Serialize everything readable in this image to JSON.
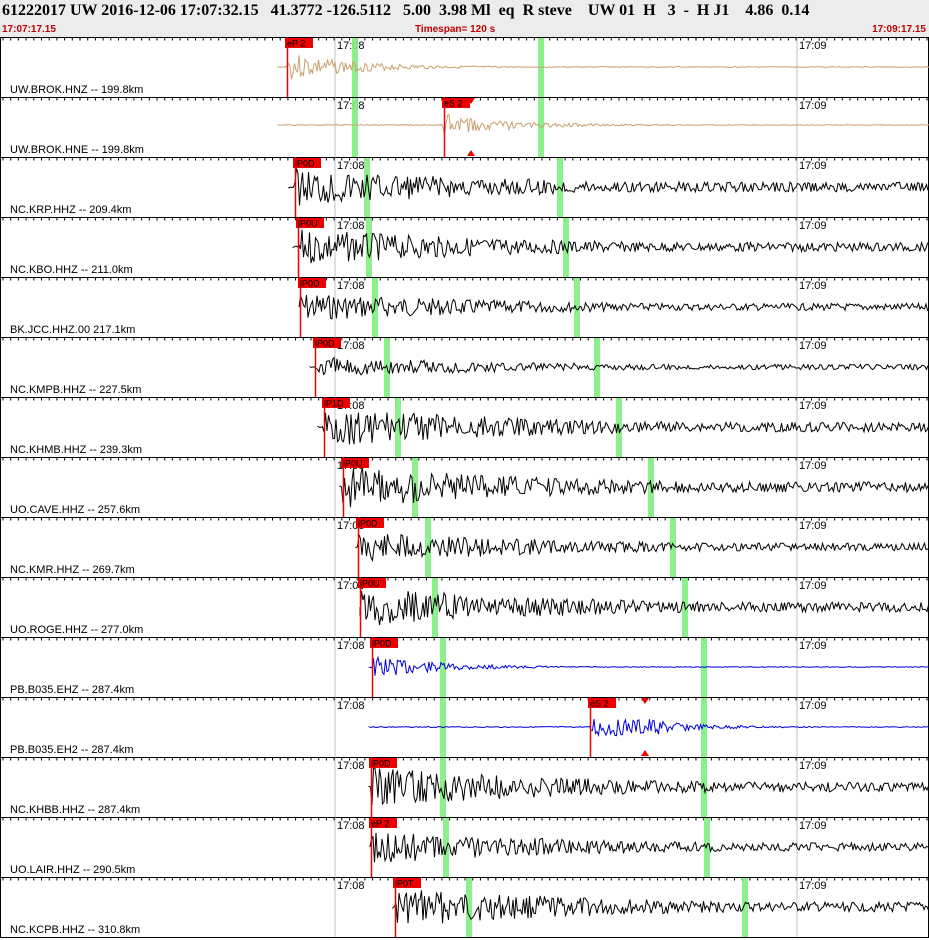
{
  "header": {
    "title": "61222017 UW 2016-12-06 17:07:32.15   41.3772 -126.5112   5.00  3.98 Ml  eq  R steve    UW 01  H   3  -  H J1    4.86  0.14",
    "start_time": "17:07:17.15",
    "timespan": "Timespan= 120 s",
    "end_time": "17:09:17.15"
  },
  "minute_labels": [
    "17:08",
    "17:09"
  ],
  "colors": {
    "brown": "#c8a070",
    "black": "#000000",
    "blue": "#0000dd",
    "pick": "#ee0000",
    "marker": "#80ee80"
  },
  "traces": [
    {
      "station": "UW.BROK.HNZ -- 199.8km",
      "pick": "eP 2",
      "pick_x": 287,
      "trace_x": 278,
      "color": "brown",
      "amp": 0.55,
      "green": 355,
      "green2": 541
    },
    {
      "station": "UW.BROK.HNE -- 199.8km",
      "pick": "eS 2",
      "pick_x": 444,
      "trace_x": 278,
      "color": "brown",
      "amp": 0.45,
      "green": 355,
      "green2": 541,
      "tri": 471
    },
    {
      "station": "NC.KRP.HHZ -- 209.4km",
      "pick": "iP0D",
      "pick_x": 295,
      "trace_x": 289,
      "color": "black",
      "amp": 0.75,
      "green": 367,
      "green2": 560
    },
    {
      "station": "NC.KBO.HHZ -- 211.0km",
      "pick": "iP0U",
      "pick_x": 298,
      "trace_x": 293,
      "color": "black",
      "amp": 0.7,
      "green": 369,
      "green2": 566
    },
    {
      "station": "BK.JCC.HHZ.00 217.1km",
      "pick": "iP0D",
      "pick_x": 300,
      "trace_x": 299,
      "color": "black",
      "amp": 0.55,
      "green": 375,
      "green2": 577
    },
    {
      "station": "NC.KMPB.HHZ -- 227.5km",
      "pick": "iP0D",
      "pick_x": 315,
      "trace_x": 310,
      "color": "black",
      "amp": 0.4,
      "green": 387,
      "green2": 597
    },
    {
      "station": "NC.KHMB.HHZ -- 239.3km",
      "pick": "iP1D",
      "pick_x": 324,
      "trace_x": 318,
      "color": "black",
      "amp": 0.75,
      "green": 398,
      "green2": 619
    },
    {
      "station": "UO.CAVE.HHZ -- 257.6km",
      "pick": "iP0U",
      "pick_x": 343,
      "trace_x": 340,
      "color": "black",
      "amp": 0.8,
      "green": 415,
      "green2": 651
    },
    {
      "station": "NC.KMR.HHZ -- 269.7km",
      "pick": "iP0D",
      "pick_x": 358,
      "trace_x": 356,
      "color": "black",
      "amp": 0.6,
      "green": 428,
      "green2": 673
    },
    {
      "station": "UO.ROGE.HHZ -- 277.0km",
      "pick": "iP0U",
      "pick_x": 360,
      "trace_x": 360,
      "color": "black",
      "amp": 0.75,
      "green": 435,
      "green2": 685
    },
    {
      "station": "PB.B035.EHZ -- 287.4km",
      "pick": "iP0D",
      "pick_x": 372,
      "trace_x": 369,
      "color": "blue",
      "amp": 0.45,
      "green": 443,
      "green2": 704
    },
    {
      "station": "PB.B035.EH2 -- 287.4km",
      "pick": "eS 2",
      "pick_x": 590,
      "trace_x": 369,
      "color": "blue",
      "amp": 0.5,
      "green": 443,
      "green2": 704,
      "tri": 645
    },
    {
      "station": "NC.KHBB.HHZ -- 287.4km",
      "pick": "iP0D",
      "pick_x": 371,
      "trace_x": 369,
      "color": "black",
      "amp": 0.75,
      "green": 443,
      "green2": 704
    },
    {
      "station": "UO.LAIR.HHZ -- 290.5km",
      "pick": "eP 2",
      "pick_x": 371,
      "trace_x": 370,
      "color": "black",
      "amp": 0.65,
      "green": 446,
      "green2": 707
    },
    {
      "station": "NC.KCPB.HHZ -- 310.8km",
      "pick": "iP0T",
      "pick_x": 395,
      "trace_x": 393,
      "color": "black",
      "amp": 0.75,
      "green": 469,
      "green2": 745
    }
  ]
}
